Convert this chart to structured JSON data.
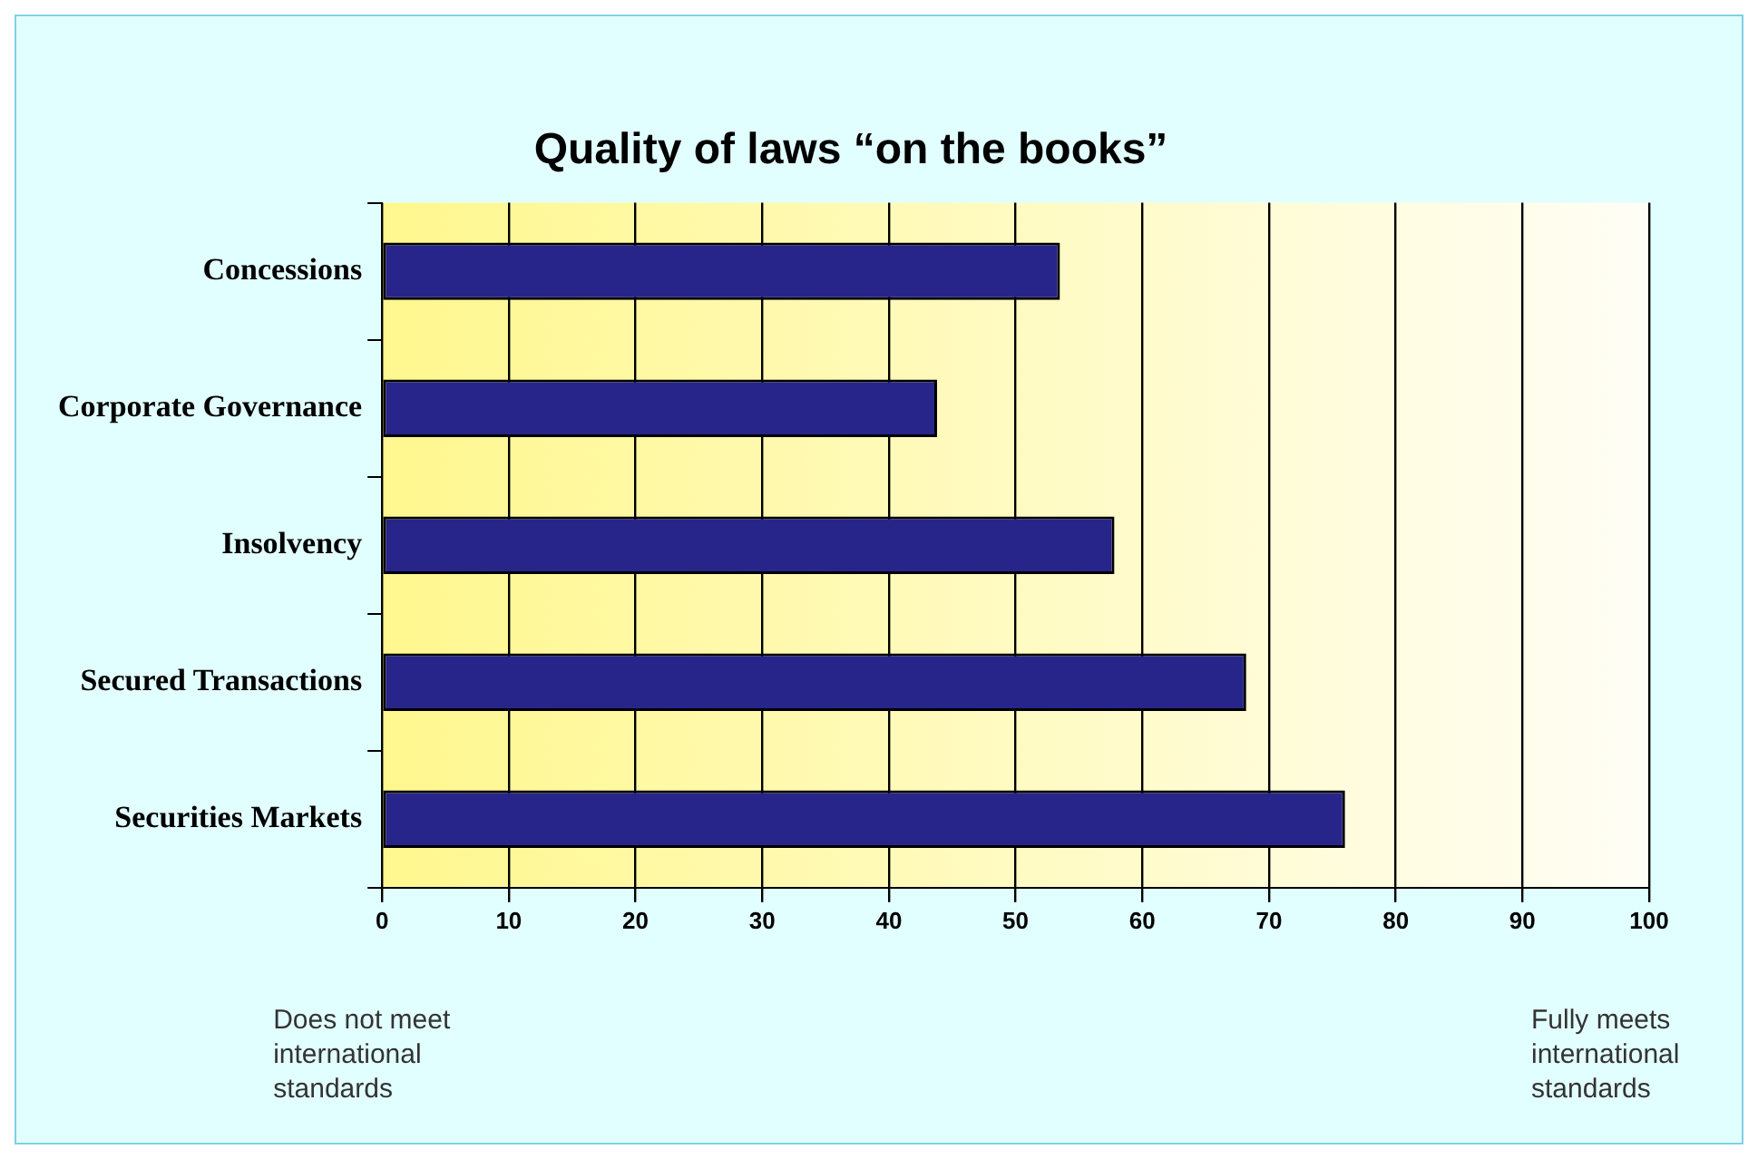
{
  "chart_data": {
    "type": "bar",
    "orientation": "horizontal",
    "title": "Quality of laws “on the books”",
    "categories": [
      "Concessions",
      "Corporate Governance",
      "Insolvency",
      "Secured Transactions",
      "Securities Markets"
    ],
    "values": [
      53.5,
      43.8,
      57.8,
      68.2,
      76.0
    ],
    "color": "#27258a",
    "xlim": [
      0,
      100
    ],
    "xticks": [
      0,
      10,
      20,
      30,
      40,
      50,
      60,
      70,
      80,
      90,
      100
    ],
    "grid": "x",
    "annotations": [
      "Does not meet international standards",
      "Fully meets international standards"
    ]
  }
}
